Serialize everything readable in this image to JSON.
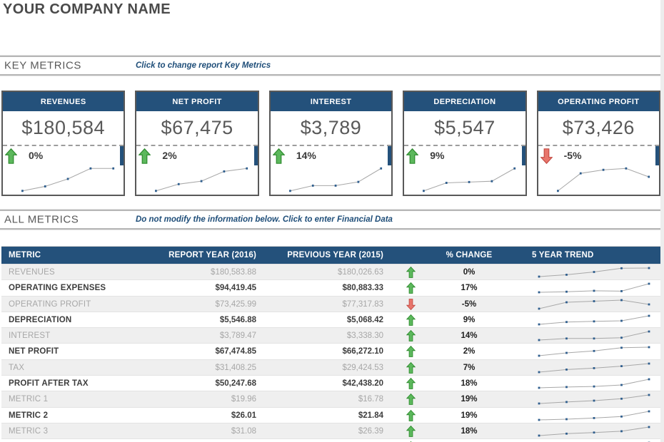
{
  "header": {
    "company_name": "YOUR COMPANY NAME"
  },
  "sections": {
    "key_metrics": {
      "title": "KEY METRICS",
      "instruction": "Click to change report Key Metrics"
    },
    "all_metrics": {
      "title": "ALL METRICS",
      "instruction": "Do not modify the information below. Click to enter Financial Data"
    }
  },
  "colors": {
    "brand_blue": "#24517b",
    "positive_green_fill": "#5cb85c",
    "positive_green_stroke": "#2e8b2e",
    "negative_red_fill": "#e8756b",
    "negative_red_stroke": "#c44d45",
    "spark_line": "#a8a8a8",
    "spark_marker": "#2e5e8e"
  },
  "cards": [
    {
      "title": "REVENUES",
      "value": "$180,584",
      "change": "0%",
      "direction": "up",
      "trend": [
        2.0,
        2.6,
        3.6,
        5.0,
        5.0
      ]
    },
    {
      "title": "NET PROFIT",
      "value": "$67,475",
      "change": "2%",
      "direction": "up",
      "trend": [
        2.0,
        2.9,
        3.3,
        4.6,
        5.0
      ]
    },
    {
      "title": "INTEREST",
      "value": "$3,789",
      "change": "14%",
      "direction": "up",
      "trend": [
        2.0,
        2.7,
        2.7,
        3.2,
        5.0
      ]
    },
    {
      "title": "DEPRECIATION",
      "value": "$5,547",
      "change": "9%",
      "direction": "up",
      "trend": [
        2.0,
        3.0,
        3.1,
        3.2,
        4.8
      ]
    },
    {
      "title": "OPERATING PROFIT",
      "value": "$73,426",
      "change": "-5%",
      "direction": "down",
      "trend": [
        1.0,
        3.5,
        4.0,
        4.2,
        3.0
      ]
    }
  ],
  "table": {
    "columns": [
      "METRIC",
      "REPORT YEAR (2016)",
      "PREVIOUS YEAR (2015)",
      "",
      "% CHANGE",
      "5 YEAR TREND"
    ],
    "rows": [
      {
        "metric": "REVENUES",
        "report": "$180,583.88",
        "previous": "$180,026.63",
        "direction": "up",
        "change": "0%",
        "trend": [
          2.0,
          3.0,
          4.5,
          6.5,
          6.6
        ]
      },
      {
        "metric": "OPERATING EXPENSES",
        "report": "$94,419.45",
        "previous": "$80,883.33",
        "direction": "up",
        "change": "17%",
        "trend": [
          2.0,
          2.3,
          2.8,
          2.6,
          6.5
        ]
      },
      {
        "metric": "OPERATING PROFIT",
        "report": "$73,425.99",
        "previous": "$77,317.83",
        "direction": "down",
        "change": "-5%",
        "trend": [
          1.5,
          4.5,
          5.0,
          5.5,
          3.5
        ]
      },
      {
        "metric": "DEPRECIATION",
        "report": "$5,546.88",
        "previous": "$5,068.42",
        "direction": "up",
        "change": "9%",
        "trend": [
          2.0,
          3.2,
          3.5,
          3.8,
          6.3
        ]
      },
      {
        "metric": "INTEREST",
        "report": "$3,789.47",
        "previous": "$3,338.30",
        "direction": "up",
        "change": "14%",
        "trend": [
          2.0,
          2.8,
          2.8,
          3.2,
          6.3
        ]
      },
      {
        "metric": "NET PROFIT",
        "report": "$67,474.85",
        "previous": "$66,272.10",
        "direction": "up",
        "change": "2%",
        "trend": [
          2.0,
          3.5,
          4.5,
          6.2,
          6.5
        ]
      },
      {
        "metric": "TAX",
        "report": "$31,408.25",
        "previous": "$29,424.53",
        "direction": "up",
        "change": "7%",
        "trend": [
          2.0,
          3.3,
          4.0,
          5.0,
          6.3
        ]
      },
      {
        "metric": "PROFIT AFTER TAX",
        "report": "$50,247.68",
        "previous": "$42,438.20",
        "direction": "up",
        "change": "18%",
        "trend": [
          2.0,
          2.4,
          2.7,
          3.5,
          6.5
        ]
      },
      {
        "metric": "METRIC 1",
        "report": "$19.96",
        "previous": "$16.78",
        "direction": "up",
        "change": "19%",
        "trend": [
          2.0,
          2.8,
          3.5,
          4.5,
          6.5
        ]
      },
      {
        "metric": "METRIC 2",
        "report": "$26.01",
        "previous": "$21.84",
        "direction": "up",
        "change": "19%",
        "trend": [
          2.0,
          2.4,
          3.0,
          3.8,
          6.6
        ]
      },
      {
        "metric": "METRIC 3",
        "report": "$31.08",
        "previous": "$26.39",
        "direction": "up",
        "change": "18%",
        "trend": [
          2.0,
          3.0,
          3.6,
          4.3,
          6.5
        ]
      },
      {
        "metric": "",
        "report": "",
        "previous": "",
        "direction": "up",
        "change": "",
        "trend": [
          2.0,
          3.0,
          3.5,
          4.0,
          6.0
        ]
      }
    ]
  }
}
